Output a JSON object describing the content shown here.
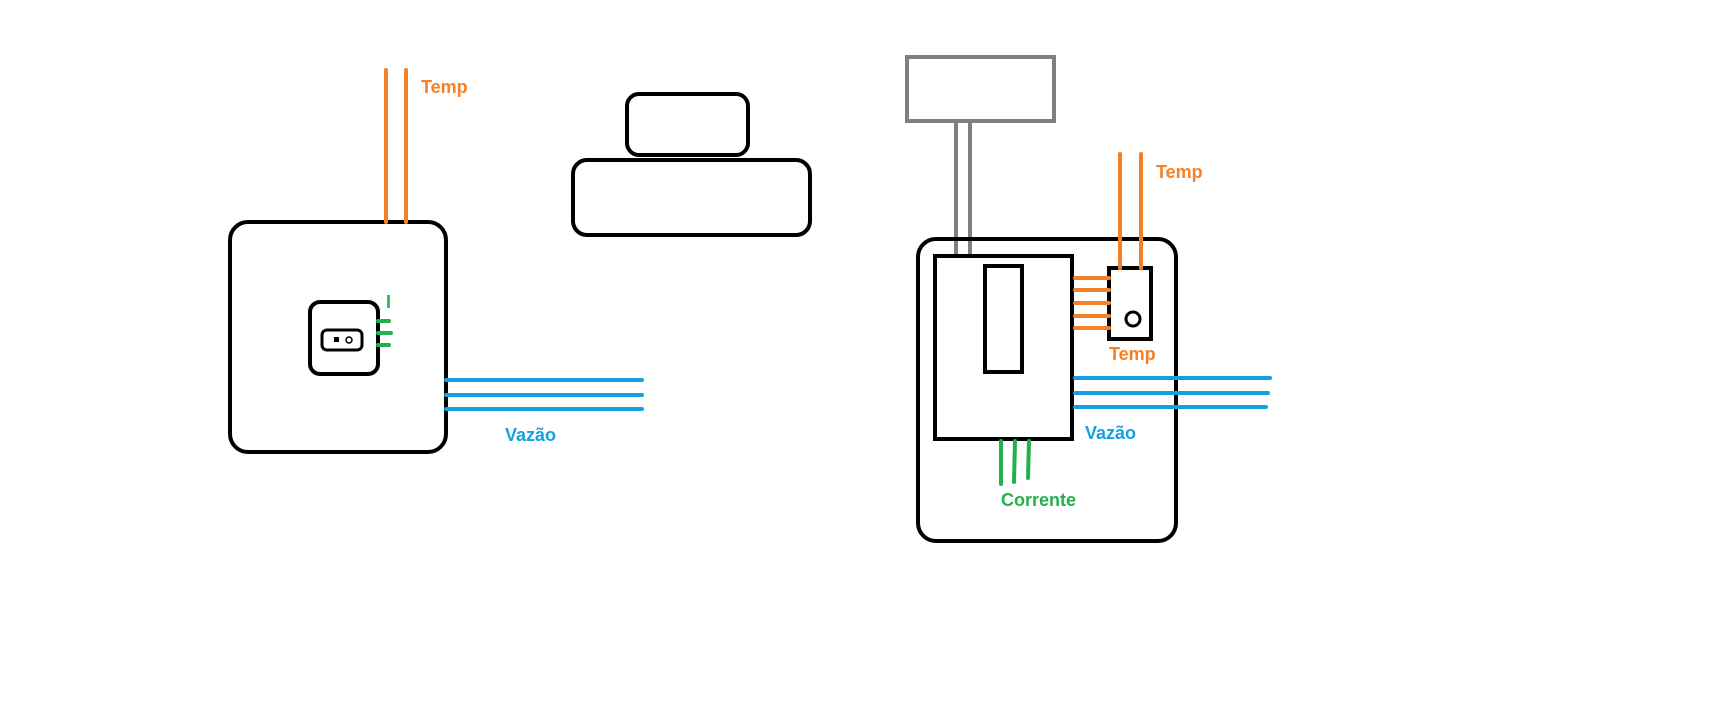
{
  "labels": {
    "left_temp": "Temp",
    "left_current": "I",
    "left_flow": "Vazão",
    "right_temp_top": "Temp",
    "right_temp_sensor": "Temp",
    "right_flow": "Vazão",
    "right_current": "Corrente"
  },
  "colors": {
    "temperature": "#f58025",
    "current": "#22b14c",
    "flow": "#12a2e2",
    "outline": "#000000",
    "gray_wire": "#7f7f7f"
  }
}
